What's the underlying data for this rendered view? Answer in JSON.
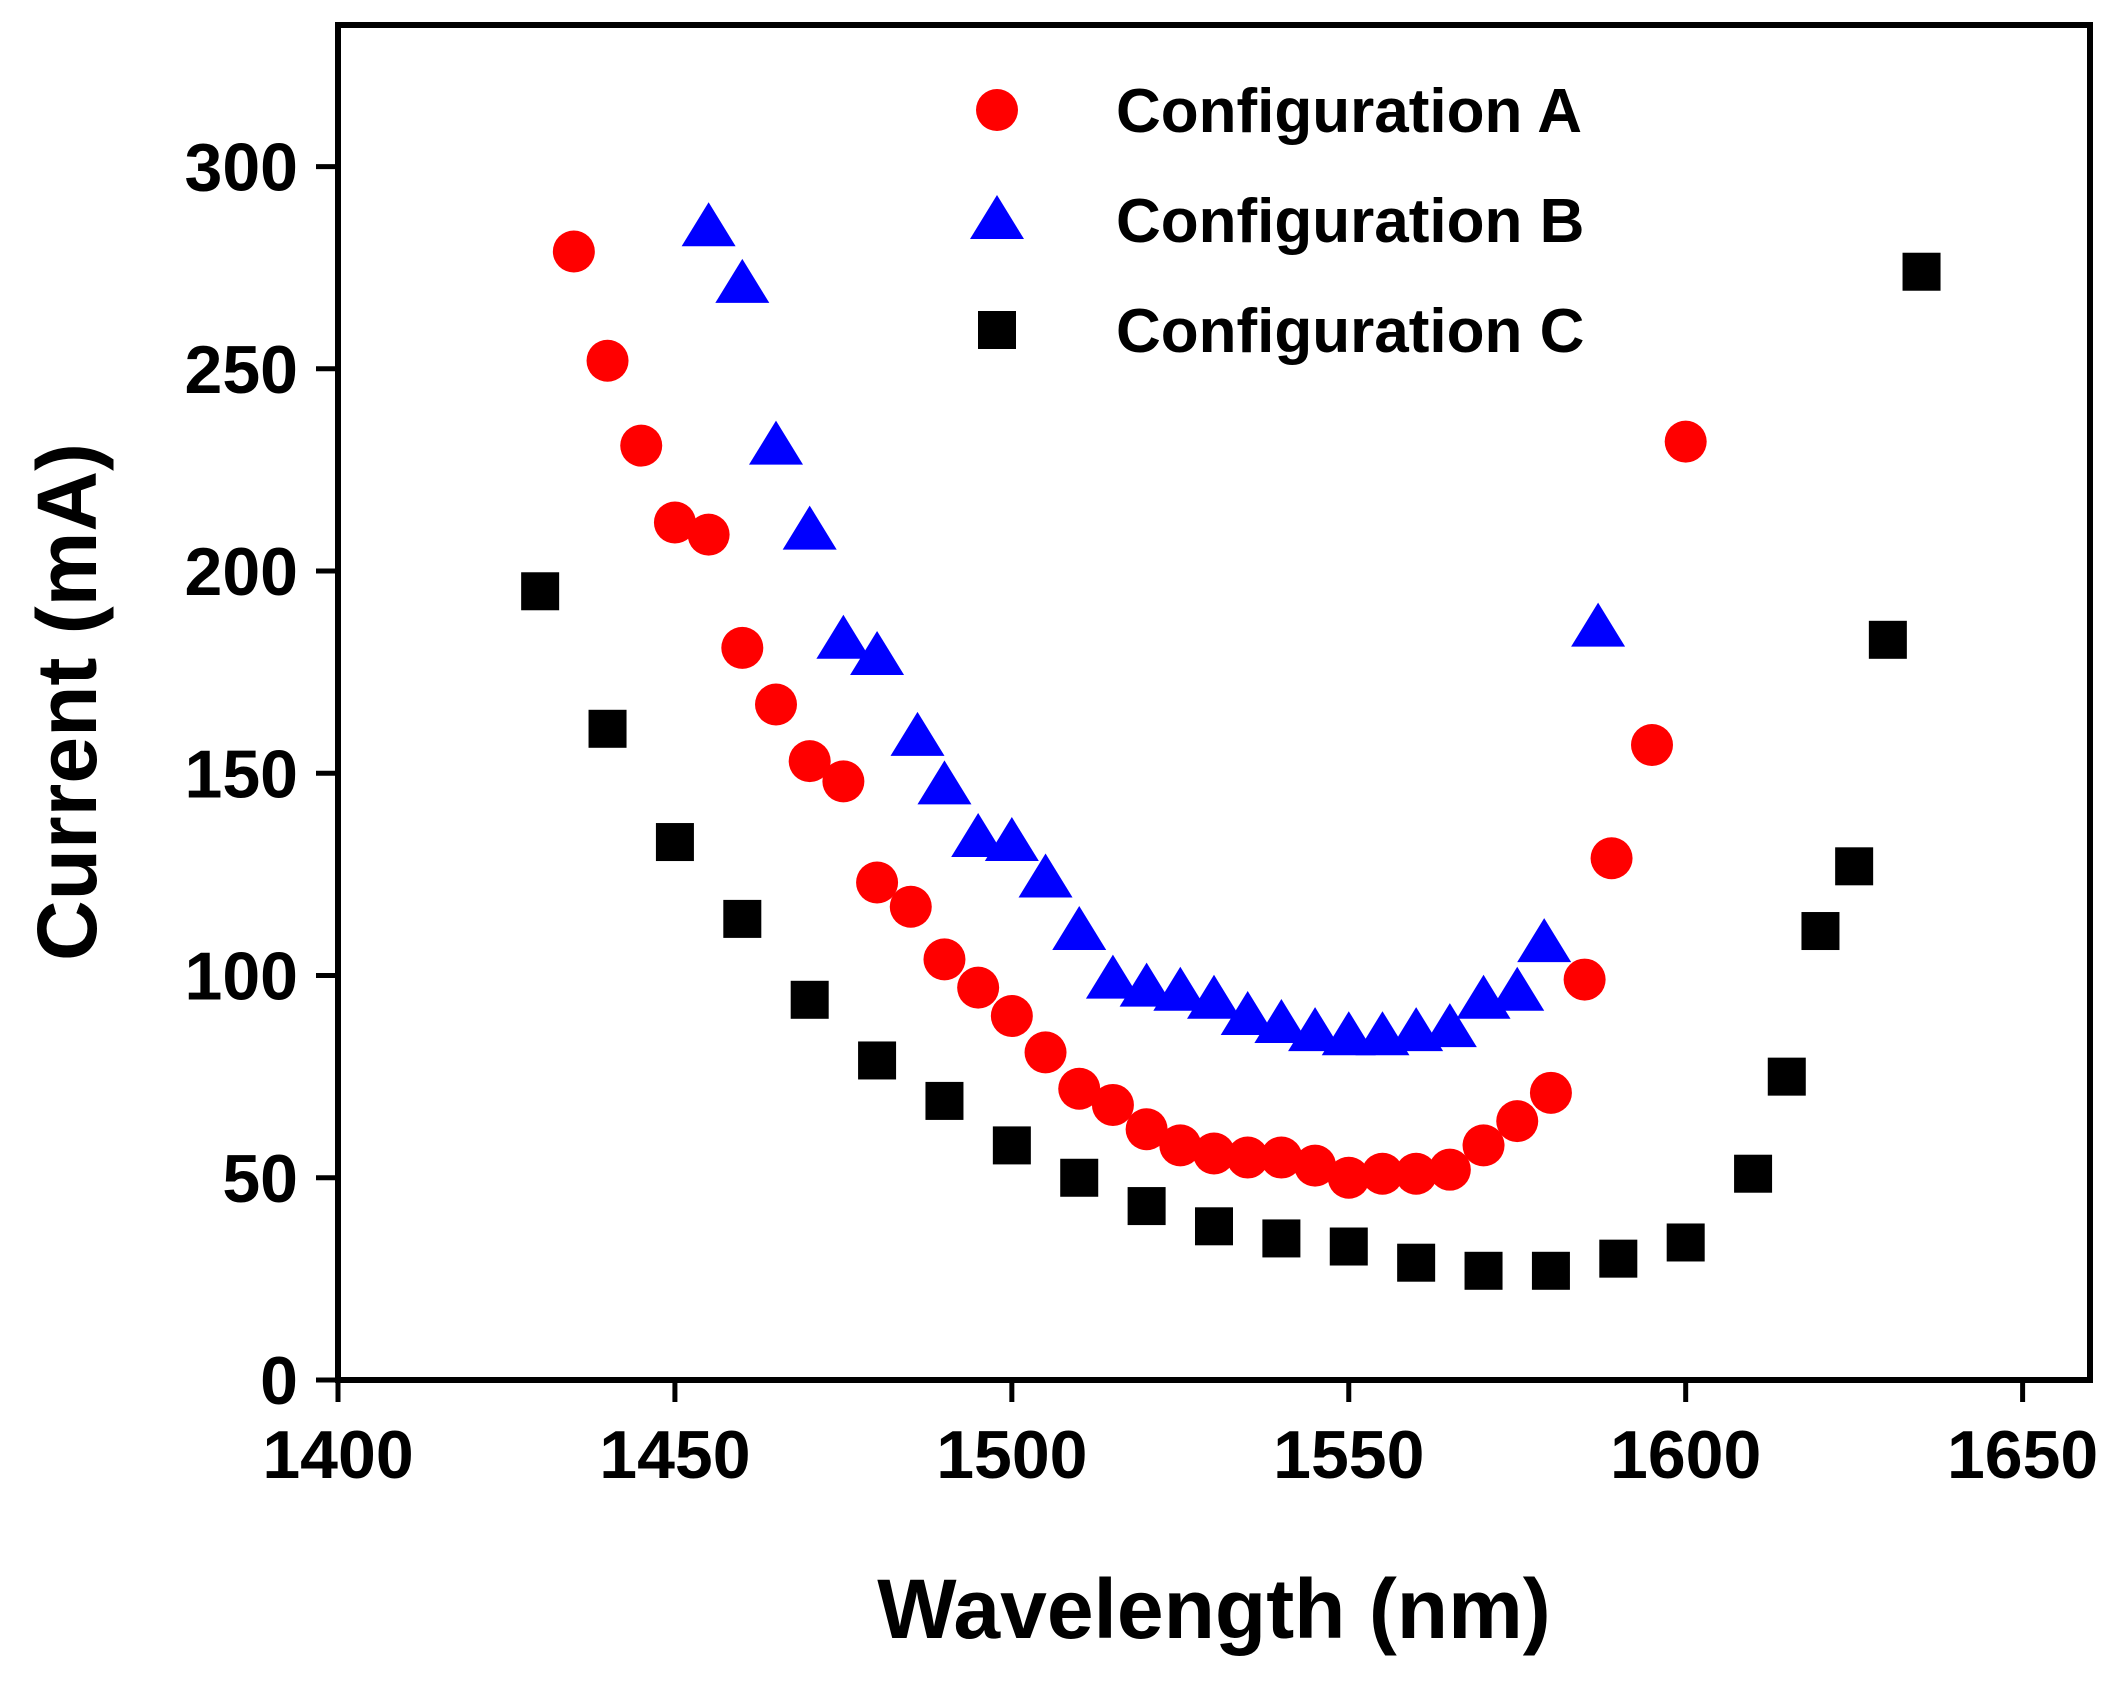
{
  "chart_data": {
    "type": "scatter",
    "title": "",
    "xlabel": "Wavelength (nm)",
    "ylabel": "Current (mA)",
    "xlim": [
      1400,
      1660
    ],
    "ylim": [
      0,
      335
    ],
    "xticks": [
      1400,
      1450,
      1500,
      1550,
      1600,
      1650
    ],
    "yticks": [
      0,
      50,
      100,
      150,
      200,
      250,
      300
    ],
    "grid": false,
    "legend_position": "top-center",
    "series": [
      {
        "name": "Configuration A",
        "marker": "circle",
        "color": "#ff0000",
        "x": [
          1435,
          1440,
          1445,
          1450,
          1455,
          1460,
          1465,
          1470,
          1475,
          1480,
          1485,
          1490,
          1495,
          1500,
          1505,
          1510,
          1515,
          1520,
          1525,
          1530,
          1535,
          1540,
          1545,
          1550,
          1555,
          1560,
          1565,
          1570,
          1575,
          1580,
          1585,
          1589,
          1595,
          1600
        ],
        "y": [
          279,
          252,
          231,
          212,
          209,
          181,
          167,
          153,
          148,
          123,
          117,
          104,
          97,
          90,
          81,
          72,
          68,
          62,
          58,
          56,
          55,
          55,
          53,
          50,
          51,
          51,
          52,
          58,
          64,
          71,
          99,
          129,
          157,
          232
        ]
      },
      {
        "name": "Configuration B",
        "marker": "triangle",
        "color": "#0000ff",
        "x": [
          1455,
          1460,
          1465,
          1470,
          1475,
          1480,
          1486,
          1490,
          1495,
          1500,
          1505,
          1510,
          1515,
          1520,
          1525,
          1530,
          1535,
          1540,
          1545,
          1550,
          1555,
          1560,
          1565,
          1570,
          1575,
          1579,
          1587
        ],
        "y": [
          285,
          271,
          231,
          210,
          183,
          179,
          159,
          147,
          134,
          133,
          124,
          111,
          99,
          97,
          96,
          94,
          90,
          88,
          86,
          85,
          85,
          86,
          87,
          94,
          96,
          108,
          186
        ]
      },
      {
        "name": "Configuration C",
        "marker": "square",
        "color": "#000000",
        "x": [
          1430,
          1440,
          1450,
          1460,
          1470,
          1480,
          1490,
          1500,
          1510,
          1520,
          1530,
          1540,
          1550,
          1560,
          1570,
          1580,
          1590,
          1600,
          1610,
          1615,
          1620,
          1625,
          1630,
          1635
        ],
        "y": [
          195,
          161,
          133,
          114,
          94,
          79,
          69,
          58,
          50,
          43,
          38,
          35,
          33,
          29,
          27,
          27,
          30,
          34,
          51,
          75,
          111,
          127,
          183,
          274
        ]
      }
    ]
  }
}
